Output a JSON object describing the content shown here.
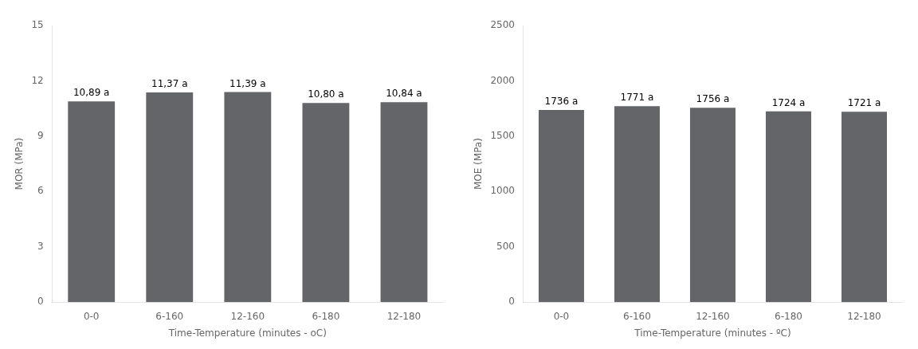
{
  "chart_data": [
    {
      "type": "bar",
      "categories": [
        "0-0",
        "6-160",
        "12-160",
        "6-180",
        "12-180"
      ],
      "values": [
        10.89,
        11.37,
        11.39,
        10.8,
        10.84
      ],
      "value_labels": [
        "10,89 a",
        "11,37 a",
        "11,39 a",
        "10,80 a",
        "10,84 a"
      ],
      "data_labels": true,
      "color": "#636569",
      "xlabel": "Time-Temperature (minutes - oC)",
      "ylabel": "MOR (MPa)",
      "ylim": [
        0,
        15
      ],
      "yticks": [
        0,
        3,
        6,
        9,
        12,
        15
      ],
      "grid": false
    },
    {
      "type": "bar",
      "categories": [
        "0-0",
        "6-160",
        "12-160",
        "6-180",
        "12-180"
      ],
      "values": [
        1736,
        1771,
        1756,
        1724,
        1721
      ],
      "value_labels": [
        "1736 a",
        "1771 a",
        "1756 a",
        "1724 a",
        "1721 a"
      ],
      "data_labels": true,
      "color": "#636569",
      "xlabel": "Time-Temperature (minutes - ºC)",
      "ylabel": "MOE (MPa)",
      "ylim": [
        0,
        2500
      ],
      "yticks": [
        0,
        500,
        1000,
        1500,
        2000,
        2500
      ],
      "grid": false
    }
  ]
}
